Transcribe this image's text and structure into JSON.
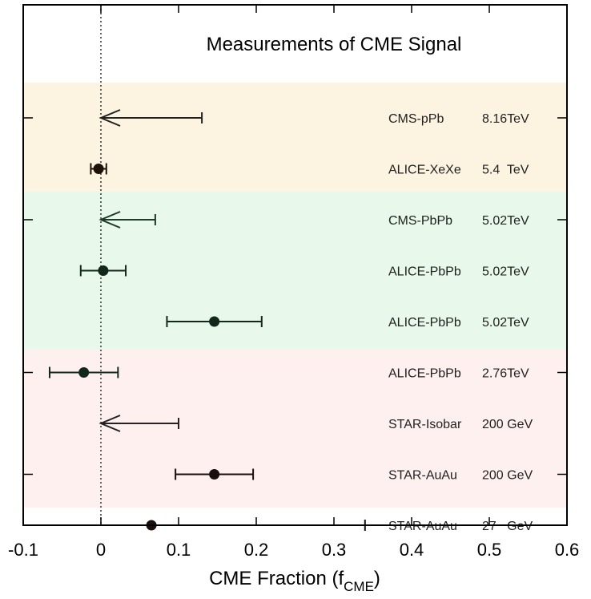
{
  "chart_data": {
    "type": "scatter",
    "title": "Measurements of CME Signal",
    "xlabel_main": "CME Fraction (f",
    "xlabel_sub": "CME",
    "xlabel_close": ")",
    "xlim": [
      -0.1,
      0.6
    ],
    "xticks": [
      "-0.1",
      "0",
      "0.1",
      "0.2",
      "0.3",
      "0.4",
      "0.5",
      "0.6"
    ],
    "reference_line_x": 0,
    "bands": [
      {
        "color": "#fdf3e1",
        "rows": [
          1,
          2
        ]
      },
      {
        "color": "#e8f8ea",
        "rows": [
          3,
          4,
          5,
          6
        ]
      },
      {
        "color": "#fdf0ef",
        "rows": [
          7,
          8,
          9
        ]
      }
    ],
    "measurements": [
      {
        "row": 1,
        "experiment": "CMS-pPb",
        "energy": "8.16TeV",
        "kind": "upper_limit",
        "upper": 0.13,
        "color": "#222222"
      },
      {
        "row": 2,
        "experiment": "ALICE-XeXe",
        "energy": "5.4  TeV",
        "kind": "point",
        "value": -0.003,
        "err_low": 0.01,
        "err_high": 0.01,
        "color": "#1e1208"
      },
      {
        "row": 3,
        "experiment": "CMS-PbPb",
        "energy": "5.02TeV",
        "kind": "upper_limit",
        "upper": 0.07,
        "color": "#1d3a2a"
      },
      {
        "row": 4,
        "experiment": "ALICE-PbPb",
        "energy": "5.02TeV",
        "kind": "point",
        "value": 0.003,
        "err_low": 0.029,
        "err_high": 0.029,
        "color": "#13281d"
      },
      {
        "row": 5,
        "experiment": "ALICE-PbPb",
        "energy": "5.02TeV",
        "kind": "point",
        "value": 0.146,
        "err_low": 0.061,
        "err_high": 0.061,
        "color": "#13281d"
      },
      {
        "row": 6,
        "experiment": "ALICE-PbPb",
        "energy": "2.76TeV",
        "kind": "point",
        "value": -0.022,
        "err_low": 0.044,
        "err_high": 0.044,
        "color": "#13281d"
      },
      {
        "row": 7,
        "experiment": "STAR-Isobar",
        "energy": "200 GeV",
        "kind": "upper_limit",
        "upper": 0.1,
        "color": "#222222"
      },
      {
        "row": 8,
        "experiment": "STAR-AuAu",
        "energy": "200 GeV",
        "kind": "point",
        "value": 0.146,
        "err_low": 0.05,
        "err_high": 0.05,
        "color": "#1a0e0e"
      },
      {
        "row": 9,
        "experiment": "STAR-AuAu",
        "energy": "27   GeV",
        "kind": "point",
        "value": 0.065,
        "err_low": 0.165,
        "err_high": 0.275,
        "color": "#1a0e0e"
      }
    ]
  }
}
